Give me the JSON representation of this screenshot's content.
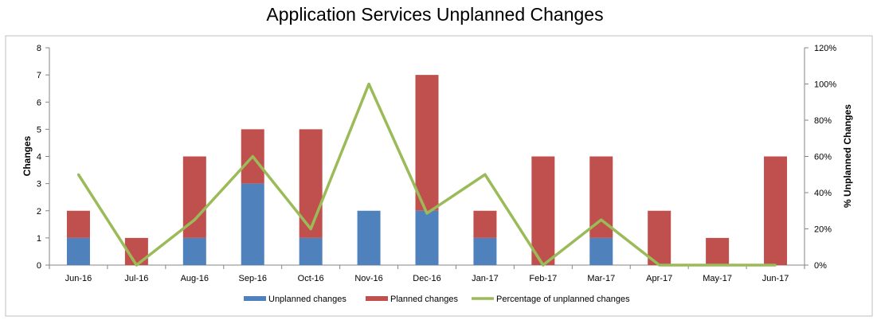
{
  "chart_data": {
    "type": "bar",
    "stacked": true,
    "title": "Application Services Unplanned Changes",
    "xlabel": "",
    "ylabel": "Changes",
    "y2label": "% Unplanned Changes",
    "ylim": [
      0,
      8
    ],
    "y2lim": [
      0,
      120
    ],
    "yticks": [
      "0",
      "1",
      "2",
      "3",
      "4",
      "5",
      "6",
      "7",
      "8"
    ],
    "y2ticks": [
      "0%",
      "20%",
      "40%",
      "60%",
      "80%",
      "100%",
      "120%"
    ],
    "categories": [
      "Jun-16",
      "Jul-16",
      "Aug-16",
      "Sep-16",
      "Oct-16",
      "Nov-16",
      "Dec-16",
      "Jan-17",
      "Feb-17",
      "Mar-17",
      "Apr-17",
      "May-17",
      "Jun-17"
    ],
    "series": [
      {
        "name": "Unplanned changes",
        "type": "bar",
        "axis": "left",
        "color": "#4F81BD",
        "values": [
          1,
          0,
          1,
          3,
          1,
          2,
          2,
          1,
          0,
          1,
          0,
          0,
          0
        ]
      },
      {
        "name": "Planned changes",
        "type": "bar",
        "axis": "left",
        "color": "#C0504D",
        "values": [
          1,
          1,
          3,
          2,
          4,
          0,
          5,
          1,
          4,
          3,
          2,
          1,
          4
        ]
      },
      {
        "name": "Percentage of unplanned changes",
        "type": "line",
        "axis": "right",
        "color": "#9BBB59",
        "values": [
          50,
          0,
          25,
          60,
          20,
          100,
          28.6,
          50,
          0,
          25,
          0,
          0,
          0
        ]
      }
    ],
    "grid": false,
    "legend": "bottom"
  }
}
